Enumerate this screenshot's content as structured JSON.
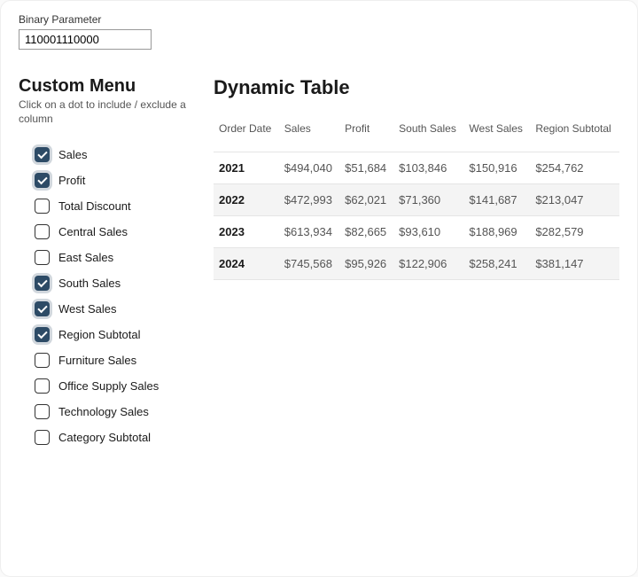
{
  "parameter": {
    "label": "Binary Parameter",
    "value": "110001110000"
  },
  "menu": {
    "title": "Custom Menu",
    "subtitle": "Click on a dot to include / exclude a column",
    "items": [
      {
        "label": "Sales",
        "checked": true
      },
      {
        "label": "Profit",
        "checked": true
      },
      {
        "label": "Total Discount",
        "checked": false
      },
      {
        "label": "Central Sales",
        "checked": false
      },
      {
        "label": "East Sales",
        "checked": false
      },
      {
        "label": "South Sales",
        "checked": true
      },
      {
        "label": "West Sales",
        "checked": true
      },
      {
        "label": "Region Subtotal",
        "checked": true
      },
      {
        "label": "Furniture Sales",
        "checked": false
      },
      {
        "label": "Office Supply Sales",
        "checked": false
      },
      {
        "label": "Technology Sales",
        "checked": false
      },
      {
        "label": "Category Subtotal",
        "checked": false
      }
    ]
  },
  "table": {
    "title": "Dynamic Table",
    "columns": [
      "Order Date",
      "Sales",
      "Profit",
      "South Sales",
      "West Sales",
      "Region Subtotal"
    ],
    "rows": [
      [
        "2021",
        "$494,040",
        "$51,684",
        "$103,846",
        "$150,916",
        "$254,762"
      ],
      [
        "2022",
        "$472,993",
        "$62,021",
        "$71,360",
        "$141,687",
        "$213,047"
      ],
      [
        "2023",
        "$613,934",
        "$82,665",
        "$93,610",
        "$188,969",
        "$282,579"
      ],
      [
        "2024",
        "$745,568",
        "$95,926",
        "$122,906",
        "$258,241",
        "$381,147"
      ]
    ]
  },
  "style": {
    "checkbox_on_bg": "#2d4b66",
    "row_alt_bg": "#f4f4f4",
    "border_color": "#e5e5e5",
    "text_muted": "#555555",
    "text_strong": "#1a1a1a"
  }
}
